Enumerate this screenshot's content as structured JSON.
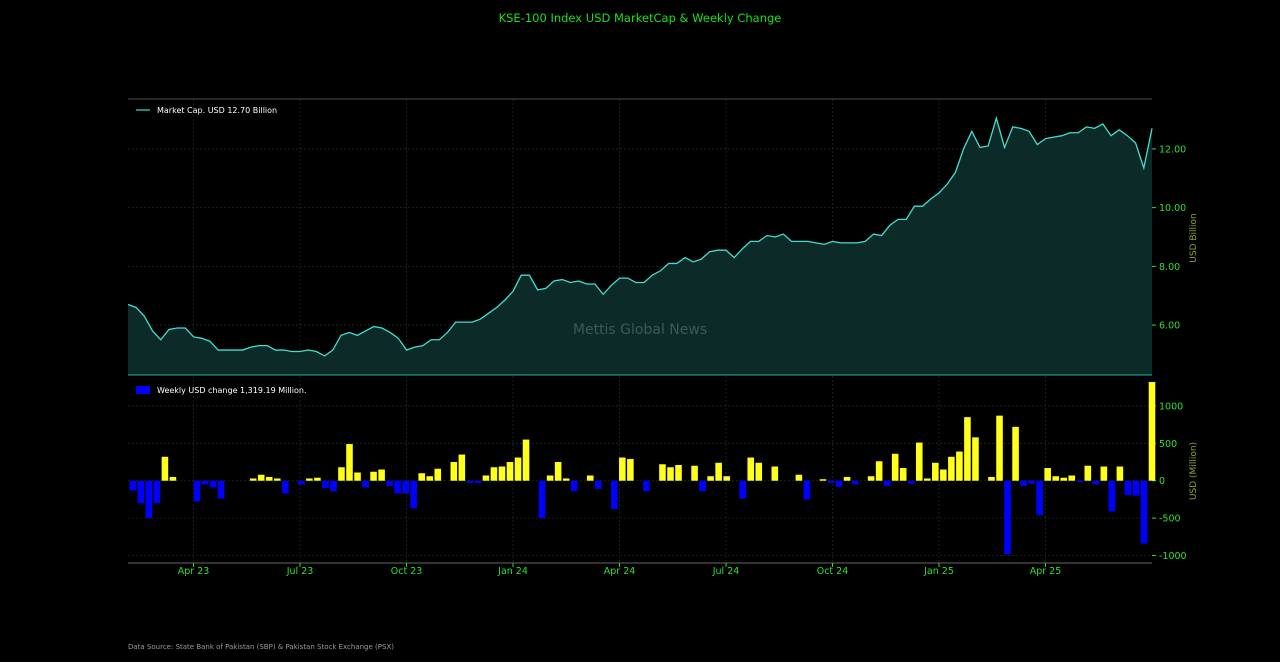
{
  "title": "KSE-100 Index USD MarketCap & Weekly Change",
  "watermark": "Mettis Global News",
  "source": "Data Source: State Bank of Pakistan (SBP) & Pakistan Stock Exchange (PSX)",
  "colors": {
    "background": "#000000",
    "line": "#40e0d0",
    "area_fill": "#0b2a28",
    "positive_bar": "#ffff19",
    "negative_bar": "#0000ff",
    "tick_text": "#2ee02e",
    "title_text": "#19e019",
    "axis_label_text": "#8aa832"
  },
  "x_ticks": [
    "Apr 23",
    "Jul 23",
    "Oct 23",
    "Jan 24",
    "Apr 24",
    "Jul 24",
    "Oct 24",
    "Jan 25",
    "Apr 25"
  ],
  "chart_data": [
    {
      "type": "area",
      "ylabel": "USD Billion",
      "ylim": [
        4.3,
        13.7
      ],
      "yticks": [
        "6.00",
        "8.00",
        "10.00",
        "12.00"
      ],
      "legend": "Market Cap. USD 12.70 Billion",
      "legend_position": "top-left",
      "grid": true,
      "series": [
        {
          "name": "Market Cap. USD 12.70 Billion",
          "values": [
            6.7,
            6.6,
            6.3,
            5.8,
            5.5,
            5.85,
            5.9,
            5.9,
            5.6,
            5.55,
            5.45,
            5.15,
            5.15,
            5.15,
            5.15,
            5.25,
            5.3,
            5.3,
            5.15,
            5.15,
            5.1,
            5.1,
            5.15,
            5.1,
            4.95,
            5.15,
            5.65,
            5.75,
            5.65,
            5.8,
            5.95,
            5.9,
            5.75,
            5.55,
            5.15,
            5.25,
            5.3,
            5.5,
            5.5,
            5.75,
            6.1,
            6.1,
            6.1,
            6.2,
            6.4,
            6.6,
            6.85,
            7.15,
            7.7,
            7.7,
            7.2,
            7.25,
            7.5,
            7.55,
            7.45,
            7.5,
            7.4,
            7.4,
            7.05,
            7.35,
            7.6,
            7.6,
            7.45,
            7.45,
            7.7,
            7.85,
            8.1,
            8.1,
            8.3,
            8.15,
            8.25,
            8.5,
            8.55,
            8.55,
            8.3,
            8.6,
            8.85,
            8.85,
            9.05,
            9.0,
            9.1,
            8.85,
            8.85,
            8.85,
            8.8,
            8.75,
            8.85,
            8.8,
            8.8,
            8.8,
            8.85,
            9.1,
            9.05,
            9.4,
            9.6,
            9.6,
            10.05,
            10.05,
            10.3,
            10.5,
            10.8,
            11.2,
            12.0,
            12.6,
            12.05,
            12.1,
            13.05,
            12.05,
            12.75,
            12.7,
            12.6,
            12.15,
            12.35,
            12.4,
            12.45,
            12.55,
            12.55,
            12.75,
            12.7,
            12.85,
            12.45,
            12.65,
            12.45,
            12.2,
            11.35,
            12.7
          ]
        }
      ]
    },
    {
      "type": "bar",
      "ylabel": "USD (Million)",
      "ylim": [
        -1100,
        1400
      ],
      "yticks": [
        "1000",
        "500",
        "0",
        "-500",
        "-1000"
      ],
      "legend": "Weekly USD change 1,319.19 Million.",
      "legend_position": "top-left",
      "grid": true,
      "series": [
        {
          "name": "Weekly USD change 1,319.19 Million.",
          "values": [
            -130,
            -300,
            -500,
            -300,
            320,
            50,
            0,
            0,
            -280,
            -50,
            -90,
            -240,
            0,
            0,
            0,
            30,
            80,
            50,
            30,
            -170,
            0,
            -50,
            30,
            40,
            -100,
            -140,
            180,
            490,
            110,
            -90,
            120,
            150,
            -70,
            -170,
            -170,
            -370,
            100,
            60,
            160,
            0,
            250,
            350,
            -30,
            -30,
            70,
            180,
            190,
            250,
            310,
            550,
            0,
            -500,
            70,
            250,
            30,
            -140,
            0,
            70,
            -110,
            0,
            -380,
            310,
            290,
            0,
            -140,
            0,
            220,
            180,
            210,
            0,
            200,
            -140,
            60,
            240,
            60,
            0,
            -240,
            310,
            240,
            0,
            190,
            0,
            0,
            80,
            -250,
            0,
            20,
            -30,
            -80,
            50,
            -50,
            0,
            60,
            260,
            -70,
            360,
            170,
            -40,
            510,
            30,
            240,
            150,
            320,
            390,
            850,
            580,
            0,
            50,
            870,
            -980,
            720,
            -70,
            -40,
            -460,
            170,
            60,
            40,
            70,
            -20,
            200,
            -50,
            190,
            -410,
            190,
            -190,
            -200,
            -840,
            1319.19
          ]
        }
      ]
    }
  ]
}
